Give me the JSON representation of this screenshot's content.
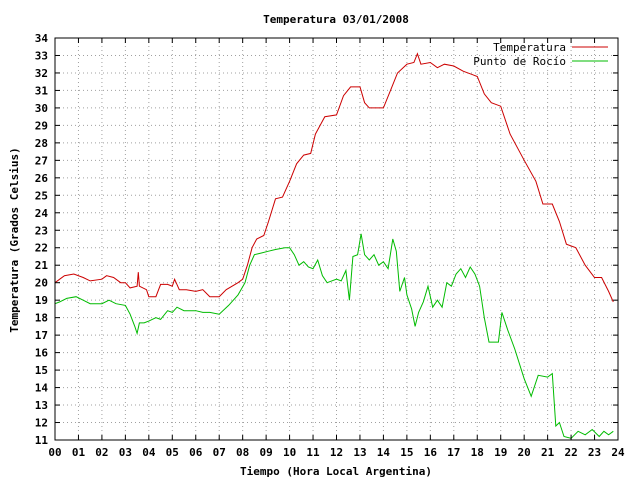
{
  "chart_data": {
    "type": "line",
    "title": "Temperatura 03/01/2008",
    "xlabel": "Tiempo (Hora Local Argentina)",
    "ylabel": "Temperatura (Grados Celsius)",
    "xlim": [
      0,
      24
    ],
    "ylim": [
      11,
      34
    ],
    "x_ticks": [
      0,
      1,
      2,
      3,
      4,
      5,
      6,
      7,
      8,
      9,
      10,
      11,
      12,
      13,
      14,
      15,
      16,
      17,
      18,
      19,
      20,
      21,
      22,
      23,
      24
    ],
    "x_tick_labels": [
      "00",
      "01",
      "02",
      "03",
      "04",
      "05",
      "06",
      "07",
      "08",
      "09",
      "10",
      "11",
      "12",
      "13",
      "14",
      "15",
      "16",
      "17",
      "18",
      "19",
      "20",
      "21",
      "22",
      "23",
      "24"
    ],
    "y_ticks": [
      11,
      12,
      13,
      14,
      15,
      16,
      17,
      18,
      19,
      20,
      21,
      22,
      23,
      24,
      25,
      26,
      27,
      28,
      29,
      30,
      31,
      32,
      33,
      34
    ],
    "grid": true,
    "legend_position": "top-right",
    "series": [
      {
        "name": "Temperatura",
        "color": "#cc0000",
        "points": [
          [
            0.0,
            20.0
          ],
          [
            0.2,
            20.2
          ],
          [
            0.4,
            20.4
          ],
          [
            0.8,
            20.5
          ],
          [
            1.2,
            20.3
          ],
          [
            1.5,
            20.1
          ],
          [
            2.0,
            20.2
          ],
          [
            2.2,
            20.4
          ],
          [
            2.5,
            20.3
          ],
          [
            2.8,
            20.0
          ],
          [
            3.0,
            20.0
          ],
          [
            3.2,
            19.7
          ],
          [
            3.5,
            19.8
          ],
          [
            3.55,
            20.6
          ],
          [
            3.6,
            19.8
          ],
          [
            3.9,
            19.6
          ],
          [
            4.0,
            19.2
          ],
          [
            4.3,
            19.2
          ],
          [
            4.5,
            19.9
          ],
          [
            4.8,
            19.9
          ],
          [
            5.0,
            19.8
          ],
          [
            5.1,
            20.2
          ],
          [
            5.3,
            19.6
          ],
          [
            5.6,
            19.6
          ],
          [
            6.0,
            19.5
          ],
          [
            6.3,
            19.6
          ],
          [
            6.6,
            19.2
          ],
          [
            7.0,
            19.2
          ],
          [
            7.3,
            19.6
          ],
          [
            7.8,
            20.0
          ],
          [
            8.0,
            20.2
          ],
          [
            8.2,
            21.0
          ],
          [
            8.4,
            22.0
          ],
          [
            8.6,
            22.5
          ],
          [
            8.9,
            22.7
          ],
          [
            9.1,
            23.5
          ],
          [
            9.4,
            24.8
          ],
          [
            9.7,
            24.9
          ],
          [
            10.0,
            25.8
          ],
          [
            10.3,
            26.8
          ],
          [
            10.6,
            27.3
          ],
          [
            10.9,
            27.4
          ],
          [
            11.1,
            28.5
          ],
          [
            11.5,
            29.5
          ],
          [
            12.0,
            29.6
          ],
          [
            12.3,
            30.7
          ],
          [
            12.6,
            31.2
          ],
          [
            13.0,
            31.2
          ],
          [
            13.2,
            30.3
          ],
          [
            13.4,
            30.0
          ],
          [
            14.0,
            30.0
          ],
          [
            14.3,
            31.0
          ],
          [
            14.6,
            32.0
          ],
          [
            15.0,
            32.5
          ],
          [
            15.3,
            32.6
          ],
          [
            15.45,
            33.1
          ],
          [
            15.6,
            32.5
          ],
          [
            16.0,
            32.6
          ],
          [
            16.3,
            32.3
          ],
          [
            16.6,
            32.5
          ],
          [
            17.0,
            32.4
          ],
          [
            17.4,
            32.1
          ],
          [
            17.8,
            31.9
          ],
          [
            18.0,
            31.8
          ],
          [
            18.3,
            30.8
          ],
          [
            18.6,
            30.3
          ],
          [
            19.0,
            30.1
          ],
          [
            19.4,
            28.5
          ],
          [
            20.0,
            27.0
          ],
          [
            20.5,
            25.8
          ],
          [
            20.8,
            24.5
          ],
          [
            21.2,
            24.5
          ],
          [
            21.5,
            23.5
          ],
          [
            21.8,
            22.2
          ],
          [
            22.2,
            22.0
          ],
          [
            22.6,
            21.0
          ],
          [
            23.0,
            20.3
          ],
          [
            23.3,
            20.3
          ],
          [
            23.6,
            19.5
          ],
          [
            23.8,
            18.9
          ]
        ]
      },
      {
        "name": "Punto de Rocío",
        "color": "#00bb00",
        "points": [
          [
            0.0,
            18.8
          ],
          [
            0.2,
            18.9
          ],
          [
            0.5,
            19.1
          ],
          [
            0.9,
            19.2
          ],
          [
            1.2,
            19.0
          ],
          [
            1.5,
            18.8
          ],
          [
            2.0,
            18.8
          ],
          [
            2.3,
            19.0
          ],
          [
            2.6,
            18.8
          ],
          [
            3.0,
            18.7
          ],
          [
            3.2,
            18.2
          ],
          [
            3.4,
            17.5
          ],
          [
            3.5,
            17.1
          ],
          [
            3.6,
            17.7
          ],
          [
            3.8,
            17.7
          ],
          [
            4.0,
            17.8
          ],
          [
            4.3,
            18.0
          ],
          [
            4.5,
            17.9
          ],
          [
            4.8,
            18.4
          ],
          [
            5.0,
            18.3
          ],
          [
            5.2,
            18.6
          ],
          [
            5.5,
            18.4
          ],
          [
            6.0,
            18.4
          ],
          [
            6.3,
            18.3
          ],
          [
            6.6,
            18.3
          ],
          [
            7.0,
            18.2
          ],
          [
            7.4,
            18.7
          ],
          [
            7.8,
            19.3
          ],
          [
            8.1,
            20.0
          ],
          [
            8.3,
            21.0
          ],
          [
            8.5,
            21.6
          ],
          [
            8.8,
            21.7
          ],
          [
            9.1,
            21.8
          ],
          [
            9.4,
            21.9
          ],
          [
            9.8,
            22.0
          ],
          [
            10.0,
            22.0
          ],
          [
            10.2,
            21.6
          ],
          [
            10.4,
            21.0
          ],
          [
            10.6,
            21.2
          ],
          [
            10.8,
            20.9
          ],
          [
            11.0,
            20.8
          ],
          [
            11.2,
            21.3
          ],
          [
            11.4,
            20.4
          ],
          [
            11.6,
            20.0
          ],
          [
            12.0,
            20.2
          ],
          [
            12.2,
            20.1
          ],
          [
            12.4,
            20.7
          ],
          [
            12.55,
            19.0
          ],
          [
            12.7,
            21.5
          ],
          [
            12.9,
            21.6
          ],
          [
            13.05,
            22.8
          ],
          [
            13.2,
            21.6
          ],
          [
            13.4,
            21.3
          ],
          [
            13.6,
            21.6
          ],
          [
            13.8,
            21.0
          ],
          [
            14.0,
            21.2
          ],
          [
            14.2,
            20.8
          ],
          [
            14.4,
            22.5
          ],
          [
            14.55,
            21.8
          ],
          [
            14.7,
            19.5
          ],
          [
            14.9,
            20.3
          ],
          [
            15.0,
            19.3
          ],
          [
            15.2,
            18.5
          ],
          [
            15.35,
            17.5
          ],
          [
            15.5,
            18.3
          ],
          [
            15.7,
            18.9
          ],
          [
            15.9,
            19.8
          ],
          [
            16.1,
            18.6
          ],
          [
            16.3,
            19.0
          ],
          [
            16.5,
            18.6
          ],
          [
            16.7,
            20.0
          ],
          [
            16.9,
            19.8
          ],
          [
            17.1,
            20.5
          ],
          [
            17.3,
            20.8
          ],
          [
            17.5,
            20.3
          ],
          [
            17.7,
            20.9
          ],
          [
            17.9,
            20.5
          ],
          [
            18.1,
            19.8
          ],
          [
            18.3,
            18.0
          ],
          [
            18.5,
            16.6
          ],
          [
            18.9,
            16.6
          ],
          [
            19.05,
            18.3
          ],
          [
            19.3,
            17.3
          ],
          [
            19.6,
            16.2
          ],
          [
            20.0,
            14.5
          ],
          [
            20.3,
            13.5
          ],
          [
            20.6,
            14.7
          ],
          [
            21.0,
            14.6
          ],
          [
            21.2,
            14.8
          ],
          [
            21.35,
            11.8
          ],
          [
            21.5,
            12.0
          ],
          [
            21.7,
            11.2
          ],
          [
            22.0,
            11.1
          ],
          [
            22.3,
            11.5
          ],
          [
            22.6,
            11.3
          ],
          [
            22.9,
            11.6
          ],
          [
            23.2,
            11.2
          ],
          [
            23.4,
            11.5
          ],
          [
            23.6,
            11.3
          ],
          [
            23.8,
            11.5
          ]
        ]
      }
    ]
  }
}
